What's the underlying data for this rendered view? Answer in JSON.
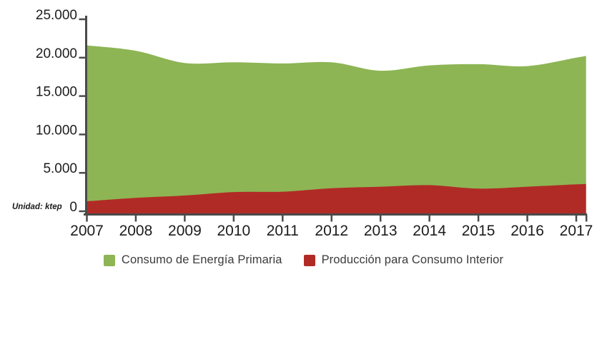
{
  "chart_data": {
    "type": "area",
    "stacking": "none",
    "title": "",
    "unit_label": "Unidad: ktep",
    "x": [
      2007,
      2008,
      2009,
      2010,
      2011,
      2012,
      2013,
      2014,
      2015,
      2016,
      2017
    ],
    "x_tick_labels": [
      "2007",
      "2008",
      "2009",
      "2010",
      "2011",
      "2012",
      "2013",
      "2014",
      "2015",
      "2016",
      "2017"
    ],
    "series": [
      {
        "name": "Consumo de Energía Primaria",
        "color": "#8db554",
        "values": [
          21600,
          20900,
          19300,
          19400,
          19250,
          19400,
          18300,
          19000,
          19150,
          18900,
          20000
        ]
      },
      {
        "name": "Producción para Consumo Interior",
        "color": "#b12b26",
        "values": [
          1300,
          1750,
          2050,
          2500,
          2550,
          3000,
          3200,
          3400,
          2950,
          3200,
          3500
        ]
      }
    ],
    "ylim": [
      0,
      25000
    ],
    "x_range": [
      2007,
      2017.2
    ],
    "y_ticks": [
      "0",
      "5.000",
      "10.000",
      "15.000",
      "20.000",
      "25.000"
    ],
    "ylabel": "",
    "xlabel": "",
    "grid": false,
    "legend_position": "bottom",
    "axis_color": "#4a4a49",
    "text_color": "#1c1c1b"
  }
}
